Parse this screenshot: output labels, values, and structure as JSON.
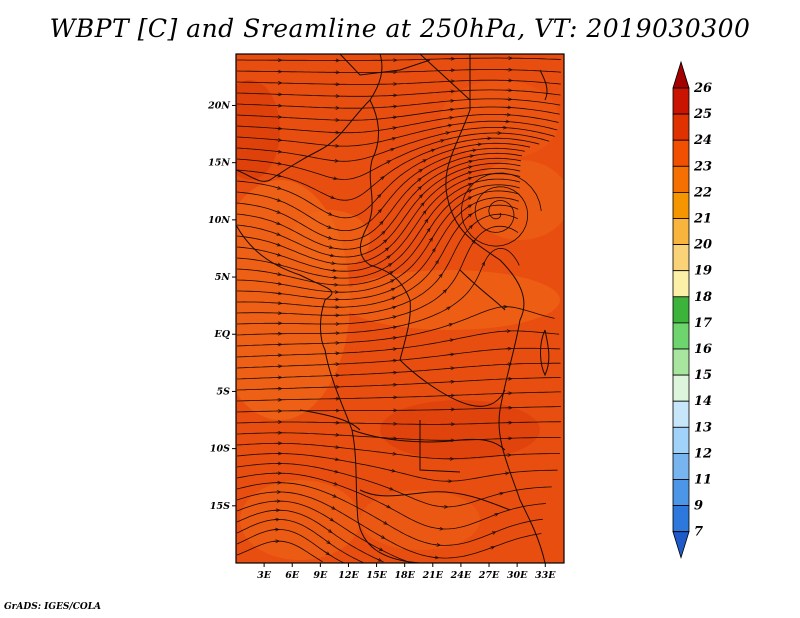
{
  "title": "WBPT [C] and Sreamline at 250hPa, VT: 2019030300",
  "credit": "GrADS: IGES/COLA",
  "map": {
    "lat_ticks": [
      "20N",
      "15N",
      "10N",
      "5N",
      "EQ",
      "5S",
      "10S",
      "15S"
    ],
    "lat_values": [
      20,
      15,
      10,
      5,
      0,
      -5,
      -10,
      -15
    ],
    "lon_ticks": [
      "3E",
      "6E",
      "9E",
      "12E",
      "15E",
      "18E",
      "21E",
      "24E",
      "27E",
      "30E",
      "33E"
    ],
    "lon_values": [
      3,
      6,
      9,
      12,
      15,
      18,
      21,
      24,
      27,
      30,
      33
    ],
    "lon_range": [
      0,
      35
    ],
    "lat_range": [
      -20,
      24.5
    ]
  },
  "colorbar": {
    "labels": [
      "26",
      "25",
      "24",
      "23",
      "22",
      "21",
      "20",
      "19",
      "18",
      "17",
      "16",
      "15",
      "14",
      "13",
      "12",
      "11",
      "9",
      "7"
    ],
    "colors": [
      "#a50000",
      "#c81400",
      "#e03200",
      "#f05000",
      "#f57000",
      "#f59600",
      "#f8b43c",
      "#fad278",
      "#fcf0a8",
      "#3cb43c",
      "#6ed46e",
      "#a8e6a0",
      "#dcf5dc",
      "#c8e6fa",
      "#a0d2fa",
      "#78b4f0",
      "#4b96e6",
      "#2d78dc",
      "#1e5ac8"
    ],
    "top_color": "#a50000",
    "bottom_color": "#1e5ac8"
  },
  "colors": {
    "field_main": "#e84e10",
    "field_warm": "#f06818",
    "field_hot": "#d83808",
    "streamline": "#1a0a00"
  }
}
